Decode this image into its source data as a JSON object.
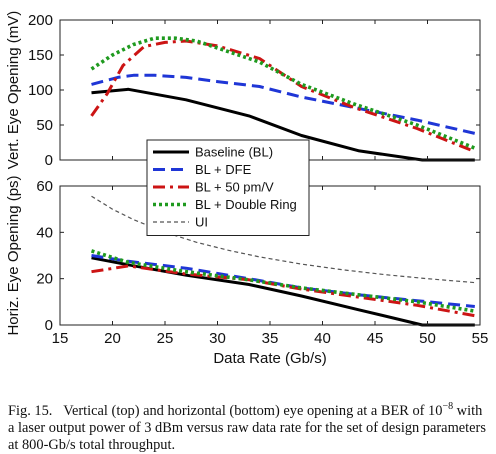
{
  "chart_data": [
    {
      "type": "line",
      "ylabel": "Vert. Eye Opening (mV)",
      "xlabel": "",
      "xlim": [
        15,
        55
      ],
      "ylim": [
        0,
        200
      ],
      "xticks": [
        15,
        20,
        25,
        30,
        35,
        40,
        45,
        50,
        55
      ],
      "yticks": [
        0,
        50,
        100,
        150,
        200
      ],
      "grid": false,
      "legend_position": "bottom-left",
      "series": [
        {
          "name": "Baseline (BL)",
          "color": "#000000",
          "dash": "solid",
          "x": [
            18,
            21.5,
            27,
            33,
            38,
            43.5,
            49.5,
            54.5
          ],
          "y": [
            96,
            101,
            86,
            63,
            35,
            13,
            0,
            0
          ]
        },
        {
          "name": "BL + DFE",
          "color": "#1f36d6",
          "dash": "dash",
          "x": [
            18,
            20.5,
            22,
            24,
            27,
            30,
            34,
            38,
            43,
            49,
            54.5
          ],
          "y": [
            108,
            118,
            121,
            121,
            118,
            112,
            105,
            90,
            75,
            57,
            38
          ]
        },
        {
          "name": "BL + 50 pm/V",
          "color": "#cc1414",
          "dash": "dashdot",
          "x": [
            18,
            19.5,
            21,
            23,
            25,
            27,
            30,
            34,
            38,
            43,
            49,
            54.5
          ],
          "y": [
            63,
            95,
            135,
            162,
            168,
            170,
            163,
            145,
            105,
            75,
            45,
            12
          ]
        },
        {
          "name": "BL + Double Ring",
          "color": "#1f9a1f",
          "dash": "dot",
          "x": [
            18,
            20,
            22,
            24,
            26,
            28,
            30,
            34,
            38,
            43,
            49,
            54.5
          ],
          "y": [
            130,
            150,
            165,
            174,
            174,
            170,
            160,
            140,
            108,
            80,
            50,
            17
          ]
        }
      ]
    },
    {
      "type": "line",
      "ylabel": "Horiz. Eye Opening (ps)",
      "xlabel": "Data Rate (Gb/s)",
      "xlim": [
        15,
        55
      ],
      "ylim": [
        0,
        60
      ],
      "xticks": [
        15,
        20,
        25,
        30,
        35,
        40,
        45,
        50,
        55
      ],
      "yticks": [
        0,
        20,
        40,
        60
      ],
      "grid": false,
      "series": [
        {
          "name": "Baseline (BL)",
          "color": "#000000",
          "dash": "solid",
          "x": [
            18,
            21.5,
            27,
            33,
            38,
            43.5,
            49.5,
            54.5
          ],
          "y": [
            29,
            26,
            21.5,
            17.5,
            12.5,
            6.5,
            0,
            0
          ]
        },
        {
          "name": "BL + DFE",
          "color": "#1f36d6",
          "dash": "dash",
          "x": [
            18,
            21.5,
            27,
            33,
            38,
            43.5,
            49,
            54.5
          ],
          "y": [
            30,
            27.5,
            24.5,
            20,
            16,
            13,
            10.5,
            8
          ]
        },
        {
          "name": "BL + 50 pm/V",
          "color": "#cc1414",
          "dash": "dashdot",
          "x": [
            18,
            21.5,
            27,
            33,
            38,
            43.5,
            49,
            54.5
          ],
          "y": [
            23,
            25.5,
            22,
            19.5,
            15.5,
            12,
            8.5,
            4
          ]
        },
        {
          "name": "BL + Double Ring",
          "color": "#1f9a1f",
          "dash": "dot",
          "x": [
            18,
            21.5,
            27,
            33,
            38,
            43.5,
            49,
            54.5
          ],
          "y": [
            32,
            27,
            23,
            19.5,
            16,
            13,
            10,
            6
          ]
        },
        {
          "name": "UI",
          "color": "#555555",
          "dash": "thin-dash",
          "x": [
            18,
            20,
            22,
            25,
            28,
            31,
            34,
            38,
            42,
            46,
            50,
            54.5
          ],
          "y": [
            55.6,
            50,
            45.5,
            40,
            35.7,
            32.3,
            29.4,
            26.3,
            23.8,
            21.7,
            20,
            18.3
          ]
        }
      ]
    }
  ],
  "legend": [
    {
      "label": "Baseline (BL)",
      "color": "#000000",
      "dash": "solid"
    },
    {
      "label": "BL + DFE",
      "color": "#1f36d6",
      "dash": "dash"
    },
    {
      "label": "BL + 50 pm/V",
      "color": "#cc1414",
      "dash": "dashdot"
    },
    {
      "label": "BL + Double Ring",
      "color": "#1f9a1f",
      "dash": "dot"
    },
    {
      "label": "UI",
      "color": "#555555",
      "dash": "thin-dash"
    }
  ],
  "caption": {
    "figure_label": "Fig. 15.",
    "text_before_power": "Vertical (top) and horizontal (bottom) eye opening at a BER of 10",
    "exponent": "−8",
    "text_after_power": " with a laser output power of 3 dBm versus raw data rate for the set of design parameters at 800-Gb/s total throughput."
  }
}
